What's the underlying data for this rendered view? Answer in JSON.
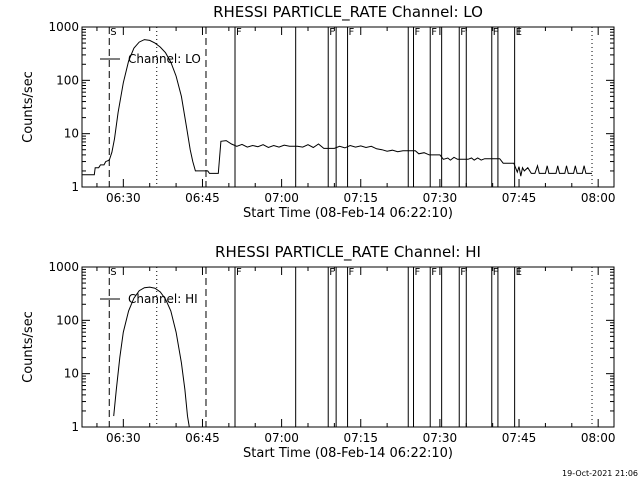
{
  "footer_timestamp": "19-Oct-2021 21:06",
  "line_color": "#000000",
  "chart_data": [
    {
      "type": "line",
      "title": "RHESSI PARTICLE_RATE Channel: LO",
      "xlabel": "Start Time (08-Feb-14 06:22:10)",
      "ylabel": "Counts/sec",
      "yscale": "log",
      "ylim": [
        1,
        1000
      ],
      "xlim": [
        "06:22:10",
        "08:03:00"
      ],
      "xticks": [
        {
          "t": "06:30:00",
          "label": "06:30"
        },
        {
          "t": "06:45:00",
          "label": "06:45"
        },
        {
          "t": "07:00:00",
          "label": "07:00"
        },
        {
          "t": "07:15:00",
          "label": "07:15"
        },
        {
          "t": "07:30:00",
          "label": "07:30"
        },
        {
          "t": "07:45:00",
          "label": "07:45"
        },
        {
          "t": "08:00:00",
          "label": "08:00"
        }
      ],
      "yticks": [
        {
          "v": 1,
          "label": "1"
        },
        {
          "v": 10,
          "label": "10"
        },
        {
          "v": 100,
          "label": "100"
        },
        {
          "v": 1000,
          "label": "1000"
        }
      ],
      "legend": {
        "label": "Channel: LO",
        "position": "top-left"
      },
      "markers": [
        {
          "t": "06:27:20",
          "style": "dashed",
          "flag": "S"
        },
        {
          "t": "06:36:20",
          "style": "dotted",
          "flag": ""
        },
        {
          "t": "06:45:40",
          "style": "dashed",
          "flag": ""
        },
        {
          "t": "06:51:10",
          "style": "solid",
          "flag": "F"
        },
        {
          "t": "07:02:40",
          "style": "solid",
          "flag": ""
        },
        {
          "t": "07:08:50",
          "style": "solid",
          "flag": "F"
        },
        {
          "t": "07:10:20",
          "style": "solid",
          "flag": ""
        },
        {
          "t": "07:12:30",
          "style": "solid",
          "flag": "F"
        },
        {
          "t": "07:24:00",
          "style": "solid",
          "flag": ""
        },
        {
          "t": "07:25:00",
          "style": "solid",
          "flag": "F"
        },
        {
          "t": "07:28:10",
          "style": "solid",
          "flag": "F"
        },
        {
          "t": "07:30:20",
          "style": "solid",
          "flag": ""
        },
        {
          "t": "07:33:40",
          "style": "solid",
          "flag": "F"
        },
        {
          "t": "07:35:00",
          "style": "solid",
          "flag": ""
        },
        {
          "t": "07:39:50",
          "style": "solid",
          "flag": "F"
        },
        {
          "t": "07:41:00",
          "style": "solid",
          "flag": ""
        },
        {
          "t": "07:44:10",
          "style": "solid",
          "flag": "E"
        },
        {
          "t": "07:58:50",
          "style": "dotted",
          "flag": ""
        }
      ],
      "series": [
        {
          "name": "Channel: LO",
          "segments": [
            [
              [
                "06:22:10",
                1.7
              ],
              [
                "06:24:30",
                1.7
              ],
              [
                "06:24:40",
                2.3
              ],
              [
                "06:25:20",
                2.3
              ],
              [
                "06:25:40",
                2.6
              ],
              [
                "06:26:20",
                2.6
              ],
              [
                "06:26:40",
                3.0
              ],
              [
                "06:27:20",
                3.2
              ],
              [
                "06:27:50",
                4.5
              ],
              [
                "06:28:20",
                8
              ],
              [
                "06:29:00",
                25
              ],
              [
                "06:30:00",
                90
              ],
              [
                "06:31:00",
                230
              ],
              [
                "06:32:00",
                400
              ],
              [
                "06:33:00",
                520
              ],
              [
                "06:34:00",
                580
              ],
              [
                "06:35:00",
                560
              ],
              [
                "06:36:00",
                500
              ],
              [
                "06:37:00",
                420
              ],
              [
                "06:38:00",
                330
              ],
              [
                "06:39:00",
                220
              ],
              [
                "06:40:00",
                120
              ],
              [
                "06:41:00",
                50
              ],
              [
                "06:42:00",
                13
              ],
              [
                "06:42:40",
                5
              ],
              [
                "06:43:10",
                3
              ],
              [
                "06:43:40",
                2.0
              ],
              [
                "06:45:30",
                2.0
              ],
              [
                "06:46:00",
                2.0
              ],
              [
                "06:46:20",
                1.8
              ],
              [
                "06:48:00",
                1.8
              ],
              [
                "06:48:30",
                7.2
              ],
              [
                "06:49:30",
                7.4
              ],
              [
                "06:50:30",
                6.4
              ],
              [
                "06:51:30",
                5.8
              ],
              [
                "06:52:30",
                6.3
              ],
              [
                "06:53:30",
                5.6
              ],
              [
                "06:54:30",
                6.0
              ],
              [
                "06:55:30",
                5.7
              ],
              [
                "06:56:30",
                6.2
              ],
              [
                "06:57:30",
                5.5
              ],
              [
                "06:58:30",
                6.0
              ],
              [
                "06:59:30",
                5.6
              ],
              [
                "07:00:30",
                6.1
              ],
              [
                "07:01:30",
                5.8
              ],
              [
                "07:03:00",
                5.8
              ],
              [
                "07:04:00",
                5.6
              ],
              [
                "07:05:00",
                6.2
              ],
              [
                "07:06:00",
                5.5
              ],
              [
                "07:07:00",
                6.4
              ],
              [
                "07:08:00",
                5.3
              ],
              [
                "07:10:00",
                5.3
              ],
              [
                "07:11:00",
                5.8
              ],
              [
                "07:12:00",
                5.4
              ],
              [
                "07:13:00",
                6.0
              ],
              [
                "07:14:00",
                5.6
              ],
              [
                "07:15:00",
                5.9
              ],
              [
                "07:16:00",
                5.5
              ],
              [
                "07:17:00",
                5.8
              ],
              [
                "07:18:00",
                5.2
              ],
              [
                "07:19:00",
                5.0
              ],
              [
                "07:20:00",
                4.7
              ],
              [
                "07:21:00",
                4.9
              ],
              [
                "07:22:00",
                4.6
              ],
              [
                "07:23:00",
                4.8
              ],
              [
                "07:25:20",
                4.8
              ],
              [
                "07:26:00",
                4.2
              ],
              [
                "07:27:00",
                4.4
              ],
              [
                "07:28:00",
                4.0
              ],
              [
                "07:30:00",
                4.0
              ],
              [
                "07:30:40",
                3.3
              ],
              [
                "07:31:30",
                3.5
              ],
              [
                "07:32:00",
                3.2
              ],
              [
                "07:32:40",
                3.6
              ],
              [
                "07:33:20",
                3.3
              ],
              [
                "07:35:20",
                3.3
              ],
              [
                "07:36:00",
                3.5
              ],
              [
                "07:36:30",
                3.2
              ],
              [
                "07:37:10",
                3.5
              ],
              [
                "07:37:50",
                3.2
              ],
              [
                "07:38:30",
                3.4
              ],
              [
                "07:41:20",
                3.4
              ],
              [
                "07:42:00",
                2.8
              ],
              [
                "07:44:00",
                2.8
              ],
              [
                "07:44:40",
                1.9
              ],
              [
                "07:45:00",
                2.4
              ],
              [
                "07:45:20",
                1.6
              ],
              [
                "07:45:40",
                2.3
              ],
              [
                "07:46:00",
                2.0
              ],
              [
                "07:46:40",
                2.3
              ],
              [
                "07:47:20",
                1.8
              ],
              [
                "07:48:00",
                1.8
              ],
              [
                "07:48:30",
                2.5
              ],
              [
                "07:48:50",
                1.8
              ],
              [
                "07:50:00",
                1.8
              ],
              [
                "07:50:20",
                2.5
              ],
              [
                "07:50:40",
                1.8
              ],
              [
                "07:52:00",
                1.8
              ],
              [
                "07:52:20",
                2.5
              ],
              [
                "07:52:40",
                1.8
              ],
              [
                "07:53:40",
                1.8
              ],
              [
                "07:54:00",
                2.5
              ],
              [
                "07:54:20",
                1.8
              ],
              [
                "07:55:20",
                1.8
              ],
              [
                "07:55:40",
                2.5
              ],
              [
                "07:56:00",
                1.8
              ],
              [
                "07:57:00",
                1.8
              ],
              [
                "07:57:20",
                2.5
              ],
              [
                "07:57:40",
                1.8
              ],
              [
                "07:58:50",
                1.8
              ]
            ]
          ]
        }
      ]
    },
    {
      "type": "line",
      "title": "RHESSI PARTICLE_RATE Channel: HI",
      "xlabel": "Start Time (08-Feb-14 06:22:10)",
      "ylabel": "Counts/sec",
      "yscale": "log",
      "ylim": [
        1,
        1000
      ],
      "xlim": [
        "06:22:10",
        "08:03:00"
      ],
      "xticks": [
        {
          "t": "06:30:00",
          "label": "06:30"
        },
        {
          "t": "06:45:00",
          "label": "06:45"
        },
        {
          "t": "07:00:00",
          "label": "07:00"
        },
        {
          "t": "07:15:00",
          "label": "07:15"
        },
        {
          "t": "07:30:00",
          "label": "07:30"
        },
        {
          "t": "07:45:00",
          "label": "07:45"
        },
        {
          "t": "08:00:00",
          "label": "08:00"
        }
      ],
      "yticks": [
        {
          "v": 1,
          "label": "1"
        },
        {
          "v": 10,
          "label": "10"
        },
        {
          "v": 100,
          "label": "100"
        },
        {
          "v": 1000,
          "label": "1000"
        }
      ],
      "legend": {
        "label": "Channel: HI",
        "position": "top-left"
      },
      "markers": [
        {
          "t": "06:27:20",
          "style": "dashed",
          "flag": "S"
        },
        {
          "t": "06:36:20",
          "style": "dotted",
          "flag": ""
        },
        {
          "t": "06:45:40",
          "style": "dashed",
          "flag": ""
        },
        {
          "t": "06:51:10",
          "style": "solid",
          "flag": "F"
        },
        {
          "t": "07:02:40",
          "style": "solid",
          "flag": ""
        },
        {
          "t": "07:08:50",
          "style": "solid",
          "flag": "F"
        },
        {
          "t": "07:10:20",
          "style": "solid",
          "flag": ""
        },
        {
          "t": "07:12:30",
          "style": "solid",
          "flag": "F"
        },
        {
          "t": "07:24:00",
          "style": "solid",
          "flag": ""
        },
        {
          "t": "07:25:00",
          "style": "solid",
          "flag": "F"
        },
        {
          "t": "07:28:10",
          "style": "solid",
          "flag": "F"
        },
        {
          "t": "07:30:20",
          "style": "solid",
          "flag": ""
        },
        {
          "t": "07:33:40",
          "style": "solid",
          "flag": "F"
        },
        {
          "t": "07:35:00",
          "style": "solid",
          "flag": ""
        },
        {
          "t": "07:39:50",
          "style": "solid",
          "flag": "F"
        },
        {
          "t": "07:41:00",
          "style": "solid",
          "flag": ""
        },
        {
          "t": "07:44:10",
          "style": "solid",
          "flag": "E"
        },
        {
          "t": "07:58:50",
          "style": "dotted",
          "flag": ""
        }
      ],
      "series": [
        {
          "name": "Channel: HI",
          "segments": [
            [
              [
                "06:28:10",
                1.6
              ],
              [
                "06:28:40",
                5
              ],
              [
                "06:29:20",
                20
              ],
              [
                "06:30:00",
                60
              ],
              [
                "06:31:00",
                150
              ],
              [
                "06:32:00",
                260
              ],
              [
                "06:33:00",
                360
              ],
              [
                "06:34:00",
                410
              ],
              [
                "06:35:00",
                420
              ],
              [
                "06:36:00",
                400
              ],
              [
                "06:37:00",
                340
              ],
              [
                "06:38:00",
                250
              ],
              [
                "06:39:00",
                150
              ],
              [
                "06:40:00",
                60
              ],
              [
                "06:41:00",
                16
              ],
              [
                "06:41:40",
                5
              ],
              [
                "06:42:10",
                1.6
              ],
              [
                "06:42:30",
                1.0
              ]
            ]
          ]
        }
      ]
    }
  ]
}
